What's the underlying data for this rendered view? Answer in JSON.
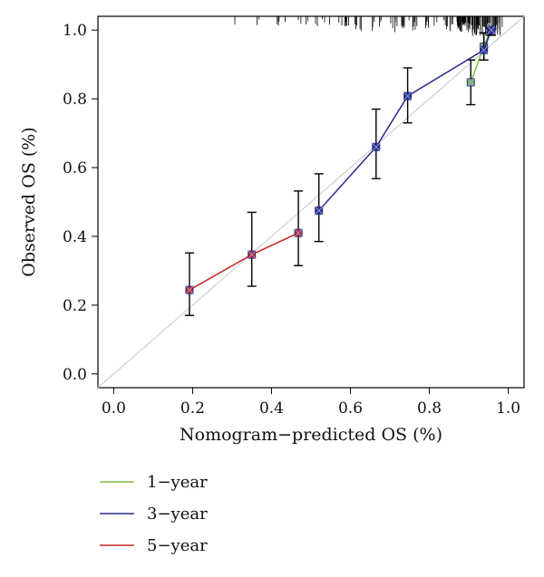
{
  "chart_data": {
    "type": "line",
    "title": "",
    "xlabel": "Nomogram−predicted OS (%)",
    "ylabel": "Observed OS (%)",
    "xlim": [
      -0.04,
      1.04
    ],
    "ylim": [
      -0.04,
      1.04
    ],
    "x_ticks": [
      "0.0",
      "0.2",
      "0.4",
      "0.6",
      "0.8",
      "1.0"
    ],
    "y_ticks": [
      "0.0",
      "0.2",
      "0.4",
      "0.6",
      "0.8",
      "1.0"
    ],
    "reference_line": "diagonal y = x",
    "grid": false,
    "legend_position": "bottom-left",
    "colors": {
      "reference": "#d0d0d0",
      "errorbar": "#000000",
      "rug": "#000000"
    },
    "series": [
      {
        "name": "1−year",
        "color": "#7fbf3f",
        "points": [
          {
            "x": 0.905,
            "y": 0.848,
            "lo": 0.783,
            "hi": 0.913
          },
          {
            "x": 0.938,
            "y": 0.952,
            "lo": 0.913,
            "hi": 0.992
          },
          {
            "x": 0.955,
            "y": 1.0,
            "lo": 0.985,
            "hi": 1.005
          }
        ]
      },
      {
        "name": "3−year",
        "color": "#2b2a8c",
        "points": [
          {
            "x": 0.52,
            "y": 0.475,
            "lo": 0.385,
            "hi": 0.582
          },
          {
            "x": 0.665,
            "y": 0.66,
            "lo": 0.568,
            "hi": 0.77
          },
          {
            "x": 0.745,
            "y": 0.808,
            "lo": 0.73,
            "hi": 0.89
          },
          {
            "x": 0.938,
            "y": 0.942,
            "lo": 0.913,
            "hi": 0.992
          },
          {
            "x": 0.957,
            "y": 1.0,
            "lo": 0.985,
            "hi": 1.005
          }
        ]
      },
      {
        "name": "5−year",
        "color": "#cc2222",
        "points": [
          {
            "x": 0.192,
            "y": 0.244,
            "lo": 0.17,
            "hi": 0.352
          },
          {
            "x": 0.35,
            "y": 0.347,
            "lo": 0.255,
            "hi": 0.47
          },
          {
            "x": 0.468,
            "y": 0.41,
            "lo": 0.315,
            "hi": 0.532
          }
        ]
      }
    ]
  }
}
